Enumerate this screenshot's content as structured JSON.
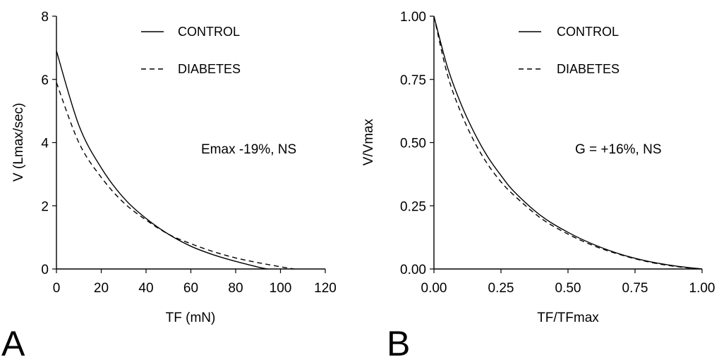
{
  "chart_data": [
    {
      "panel": "A",
      "type": "line",
      "xlabel": "TF (mN)",
      "ylabel": "V (Lmax/sec)",
      "xlim": [
        0,
        120
      ],
      "ylim": [
        0,
        8
      ],
      "xticks": [
        "0",
        "20",
        "40",
        "60",
        "80",
        "100",
        "120"
      ],
      "yticks": [
        "0",
        "2",
        "4",
        "6",
        "8"
      ],
      "annotation": "Emax -19%, NS",
      "legend_position": "top-right",
      "series": [
        {
          "name": "CONTROL",
          "style": "solid",
          "x": [
            0,
            10,
            20,
            30,
            40,
            50,
            60,
            70,
            80,
            90,
            94
          ],
          "y": [
            6.9,
            4.55,
            3.2,
            2.25,
            1.6,
            1.1,
            0.72,
            0.45,
            0.24,
            0.06,
            0
          ]
        },
        {
          "name": "DIABETES",
          "style": "dashed",
          "x": [
            0,
            10,
            20,
            30,
            40,
            50,
            60,
            70,
            80,
            90,
            100,
            106
          ],
          "y": [
            5.9,
            4.0,
            2.9,
            2.1,
            1.55,
            1.1,
            0.8,
            0.55,
            0.35,
            0.2,
            0.07,
            0
          ]
        }
      ]
    },
    {
      "panel": "B",
      "type": "line",
      "xlabel": "TF/TFmax",
      "ylabel": "V/Vmax",
      "xlim": [
        0,
        1
      ],
      "ylim": [
        0,
        1
      ],
      "xticks": [
        "0.00",
        "0.25",
        "0.50",
        "0.75",
        "1.00"
      ],
      "yticks": [
        "0.00",
        "0.25",
        "0.50",
        "0.75",
        "1.00"
      ],
      "annotation": "G = +16%, NS",
      "legend_position": "top-right",
      "series": [
        {
          "name": "CONTROL",
          "style": "solid",
          "x": [
            0,
            0.05,
            0.1,
            0.15,
            0.2,
            0.25,
            0.3,
            0.4,
            0.5,
            0.6,
            0.7,
            0.8,
            0.9,
            1.0
          ],
          "y": [
            1.0,
            0.8,
            0.655,
            0.54,
            0.445,
            0.37,
            0.305,
            0.21,
            0.145,
            0.095,
            0.057,
            0.03,
            0.012,
            0.0
          ]
        },
        {
          "name": "DIABETES",
          "style": "dashed",
          "x": [
            0,
            0.05,
            0.1,
            0.15,
            0.2,
            0.25,
            0.3,
            0.4,
            0.5,
            0.6,
            0.7,
            0.8,
            0.9,
            1.0
          ],
          "y": [
            1.0,
            0.77,
            0.62,
            0.505,
            0.415,
            0.345,
            0.29,
            0.2,
            0.138,
            0.09,
            0.055,
            0.028,
            0.01,
            0.0
          ]
        }
      ]
    }
  ]
}
